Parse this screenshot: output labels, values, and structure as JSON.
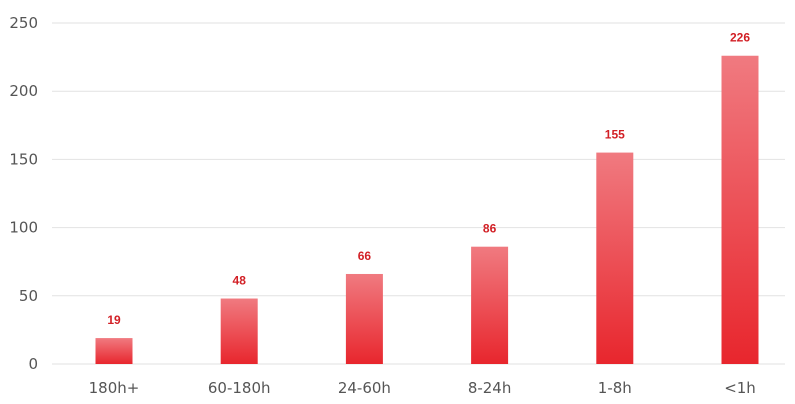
{
  "chart_data": {
    "type": "bar",
    "categories": [
      "180h+",
      "60-180h",
      "24-60h",
      "8-24h",
      "1-8h",
      "<1h"
    ],
    "values": [
      19,
      48,
      66,
      86,
      155,
      226
    ],
    "title": "",
    "xlabel": "",
    "ylabel": "",
    "ylim": [
      0,
      250
    ],
    "yticks": [
      0,
      50,
      100,
      150,
      200,
      250
    ],
    "grid": true,
    "legend": "none",
    "data_labels": true,
    "colors": {
      "bar_top": "#f07a80",
      "bar_bottom": "#e8262d",
      "data_label": "#d21f25",
      "grid": "#e2e2e2",
      "axis_text": "#555555"
    }
  }
}
